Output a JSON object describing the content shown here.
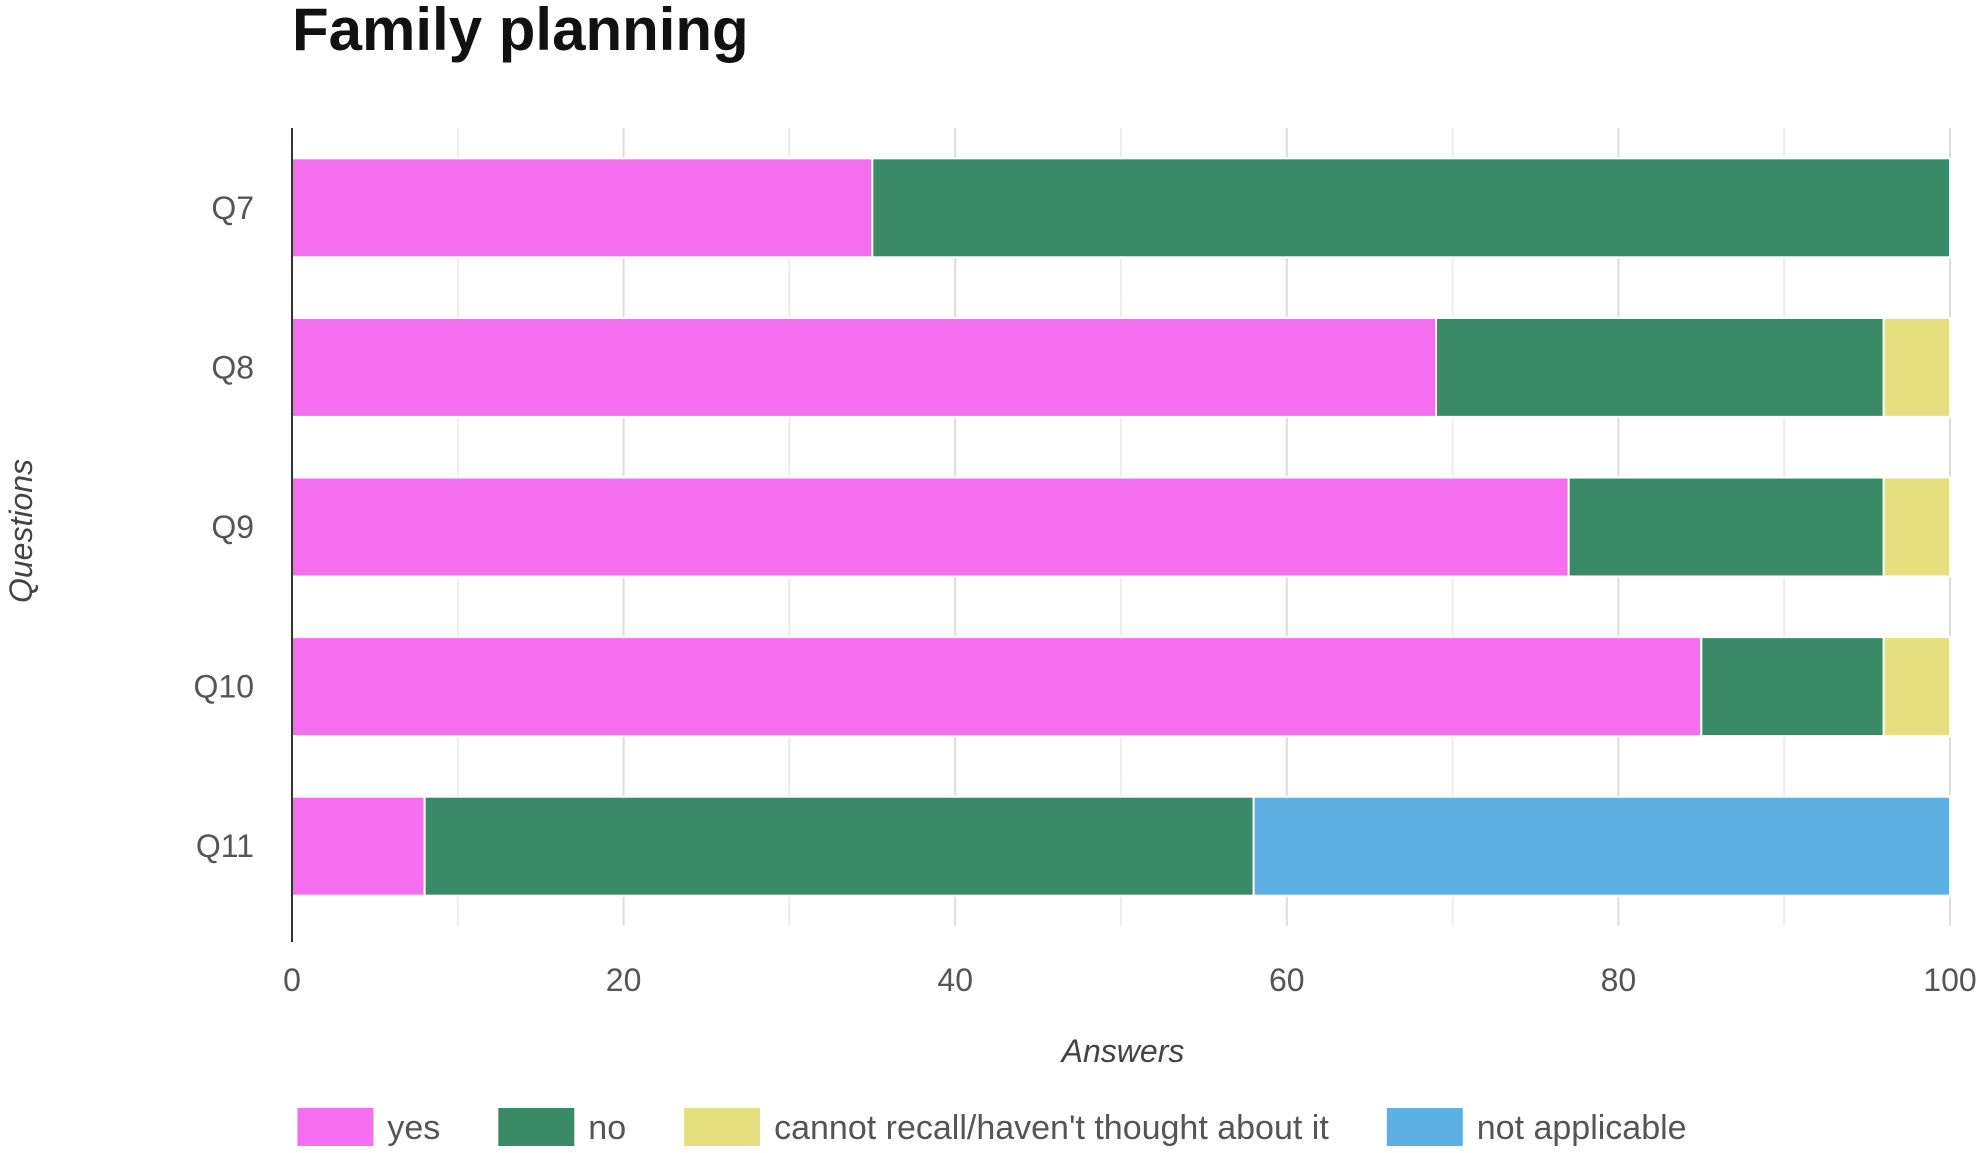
{
  "chart_data": {
    "type": "bar",
    "orientation": "horizontal",
    "stacked": true,
    "title": "Family planning",
    "xlabel": "Answers",
    "ylabel": "Questions",
    "categories": [
      "Q7",
      "Q8",
      "Q9",
      "Q10",
      "Q11"
    ],
    "xlim": [
      0,
      100
    ],
    "x_ticks": [
      "0",
      "20",
      "40",
      "60",
      "80",
      "100"
    ],
    "grid": true,
    "legend_position": "bottom",
    "series": [
      {
        "name": "yes",
        "color": "#f56ef0",
        "values": [
          35,
          69,
          77,
          85,
          8
        ]
      },
      {
        "name": "no",
        "color": "#3a8a68",
        "values": [
          65,
          27,
          19,
          11,
          50
        ]
      },
      {
        "name": "cannot recall/haven't thought about it",
        "color": "#e4e07f",
        "values": [
          0,
          4,
          4,
          4,
          0
        ]
      },
      {
        "name": "not applicable",
        "color": "#5cb0e2",
        "values": [
          0,
          0,
          0,
          0,
          42
        ]
      }
    ]
  }
}
